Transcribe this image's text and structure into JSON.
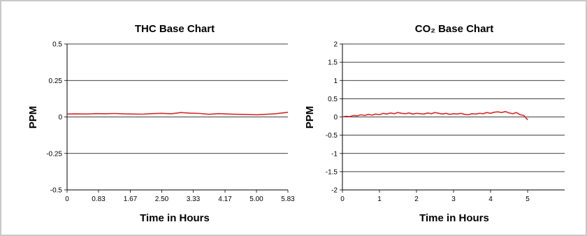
{
  "chart_data": [
    {
      "type": "line",
      "title": "THC Base Chart",
      "xlabel": "Time in Hours",
      "ylabel": "PPM",
      "xlim": [
        0,
        5.83
      ],
      "ylim": [
        -0.5,
        0.5
      ],
      "x_ticks": [
        "0",
        "0.83",
        "1.67",
        "2.50",
        "3.33",
        "4.17",
        "5.00",
        "5.83"
      ],
      "y_ticks": [
        "0.5",
        "0.25",
        "0",
        "-0.25",
        "-0.5"
      ],
      "grid": true,
      "series_color": "#d62b2b",
      "series": [
        {
          "x": [
            0,
            0.25,
            0.5,
            0.75,
            1.0,
            1.25,
            1.5,
            1.75,
            2.0,
            2.25,
            2.5,
            2.75,
            3.0,
            3.25,
            3.5,
            3.75,
            4.0,
            4.25,
            4.5,
            4.75,
            5.0,
            5.25,
            5.5,
            5.83
          ],
          "y": [
            0.02,
            0.021,
            0.02,
            0.023,
            0.022,
            0.024,
            0.021,
            0.02,
            0.019,
            0.023,
            0.025,
            0.022,
            0.03,
            0.026,
            0.024,
            0.018,
            0.023,
            0.02,
            0.018,
            0.017,
            0.015,
            0.018,
            0.022,
            0.032
          ]
        }
      ]
    },
    {
      "type": "line",
      "title": "CO₂ Base Chart",
      "xlabel": "Time in Hours",
      "ylabel": "PPM",
      "xlim": [
        0,
        6
      ],
      "ylim": [
        -2,
        2
      ],
      "x_ticks": [
        "0",
        "1",
        "2",
        "3",
        "4",
        "5"
      ],
      "y_ticks": [
        "2",
        "1.5",
        "1",
        "0.5",
        "0",
        "-0.5",
        "-1",
        "-1.5",
        "-2"
      ],
      "grid": true,
      "series_color": "#d62b2b",
      "series": [
        {
          "x": [
            0,
            0.1,
            0.2,
            0.3,
            0.4,
            0.5,
            0.6,
            0.7,
            0.8,
            0.9,
            1.0,
            1.1,
            1.2,
            1.3,
            1.4,
            1.5,
            1.6,
            1.7,
            1.8,
            1.9,
            2.0,
            2.1,
            2.2,
            2.3,
            2.4,
            2.5,
            2.6,
            2.7,
            2.8,
            2.9,
            3.0,
            3.1,
            3.2,
            3.3,
            3.4,
            3.5,
            3.6,
            3.7,
            3.8,
            3.9,
            4.0,
            4.1,
            4.2,
            4.3,
            4.4,
            4.5,
            4.6,
            4.7,
            4.8,
            4.9,
            5.0
          ],
          "y": [
            0.0,
            0.02,
            0.01,
            0.04,
            0.03,
            0.06,
            0.04,
            0.07,
            0.05,
            0.08,
            0.06,
            0.1,
            0.08,
            0.11,
            0.09,
            0.12,
            0.1,
            0.09,
            0.11,
            0.08,
            0.1,
            0.09,
            0.08,
            0.11,
            0.09,
            0.12,
            0.1,
            0.08,
            0.1,
            0.07,
            0.09,
            0.08,
            0.1,
            0.07,
            0.06,
            0.09,
            0.08,
            0.1,
            0.09,
            0.12,
            0.1,
            0.13,
            0.14,
            0.12,
            0.15,
            0.11,
            0.09,
            0.12,
            0.06,
            0.04,
            -0.08
          ]
        }
      ]
    }
  ]
}
